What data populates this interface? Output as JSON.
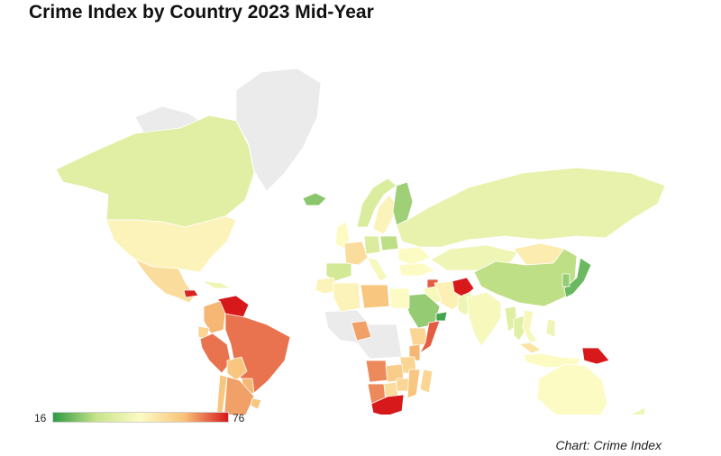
{
  "title": "Crime Index by Country 2023 Mid-Year",
  "credit": "Chart: Crime Index",
  "legend": {
    "min_label": "16",
    "max_label": "76",
    "min": 16,
    "max": 76,
    "colors": [
      "#2e9a45",
      "#c8e48a",
      "#fdfbc4",
      "#f8c27a",
      "#d7191c"
    ]
  },
  "no_data_color": "#ebebeb",
  "chart_data": {
    "type": "choropleth",
    "title": "Crime Index by Country 2023 Mid-Year",
    "metric": "Crime Index",
    "range": [
      16,
      76
    ],
    "countries": [
      {
        "name": "Canada",
        "value": 38
      },
      {
        "name": "United States",
        "value": 48
      },
      {
        "name": "Mexico",
        "value": 54
      },
      {
        "name": "Cuba",
        "value": 42
      },
      {
        "name": "Honduras",
        "value": 75
      },
      {
        "name": "Venezuela",
        "value": 76
      },
      {
        "name": "Colombia",
        "value": 62
      },
      {
        "name": "Ecuador",
        "value": 56
      },
      {
        "name": "Peru",
        "value": 68
      },
      {
        "name": "Brazil",
        "value": 68
      },
      {
        "name": "Bolivia",
        "value": 60
      },
      {
        "name": "Paraguay",
        "value": 62
      },
      {
        "name": "Chile",
        "value": 60
      },
      {
        "name": "Argentina",
        "value": 64
      },
      {
        "name": "Uruguay",
        "value": 60
      },
      {
        "name": "Greenland",
        "value": null
      },
      {
        "name": "Iceland",
        "value": 25
      },
      {
        "name": "Norway",
        "value": 36
      },
      {
        "name": "Sweden",
        "value": 48
      },
      {
        "name": "Finland",
        "value": 27
      },
      {
        "name": "United Kingdom",
        "value": 46
      },
      {
        "name": "Spain",
        "value": 34
      },
      {
        "name": "France",
        "value": 54
      },
      {
        "name": "Germany",
        "value": 36
      },
      {
        "name": "Italy",
        "value": 44
      },
      {
        "name": "Poland",
        "value": 30
      },
      {
        "name": "Ukraine",
        "value": 46
      },
      {
        "name": "Russia",
        "value": 40
      },
      {
        "name": "Kazakhstan",
        "value": 42
      },
      {
        "name": "Mongolia",
        "value": 50
      },
      {
        "name": "China",
        "value": 30
      },
      {
        "name": "Japan",
        "value": 22
      },
      {
        "name": "South Korea",
        "value": 26
      },
      {
        "name": "Turkey",
        "value": 46
      },
      {
        "name": "Syria",
        "value": 70
      },
      {
        "name": "Iran",
        "value": 49
      },
      {
        "name": "Iraq",
        "value": 44
      },
      {
        "name": "Saudi Arabia",
        "value": 26
      },
      {
        "name": "United Arab Emirates",
        "value": 18
      },
      {
        "name": "Afghanistan",
        "value": 76
      },
      {
        "name": "Pakistan",
        "value": 42
      },
      {
        "name": "India",
        "value": 44
      },
      {
        "name": "Myanmar",
        "value": 38
      },
      {
        "name": "Thailand",
        "value": 38
      },
      {
        "name": "Vietnam",
        "value": 44
      },
      {
        "name": "Philippines",
        "value": 42
      },
      {
        "name": "Malaysia",
        "value": 52
      },
      {
        "name": "Indonesia",
        "value": 46
      },
      {
        "name": "Papua New Guinea",
        "value": 80
      },
      {
        "name": "Australia",
        "value": 46
      },
      {
        "name": "New Zealand",
        "value": 42
      },
      {
        "name": "Morocco",
        "value": 48
      },
      {
        "name": "Algeria",
        "value": 48
      },
      {
        "name": "Libya",
        "value": 60
      },
      {
        "name": "Egypt",
        "value": 46
      },
      {
        "name": "Nigeria",
        "value": 64
      },
      {
        "name": "Ethiopia",
        "value": 56
      },
      {
        "name": "Somalia",
        "value": 70
      },
      {
        "name": "Kenya",
        "value": 62
      },
      {
        "name": "Tanzania",
        "value": 56
      },
      {
        "name": "Angola",
        "value": 66
      },
      {
        "name": "Zambia",
        "value": 58
      },
      {
        "name": "Namibia",
        "value": 66
      },
      {
        "name": "Botswana",
        "value": 54
      },
      {
        "name": "Zimbabwe",
        "value": 56
      },
      {
        "name": "Mozambique",
        "value": 60
      },
      {
        "name": "Madagascar",
        "value": 56
      },
      {
        "name": "South Africa",
        "value": 76
      }
    ]
  }
}
